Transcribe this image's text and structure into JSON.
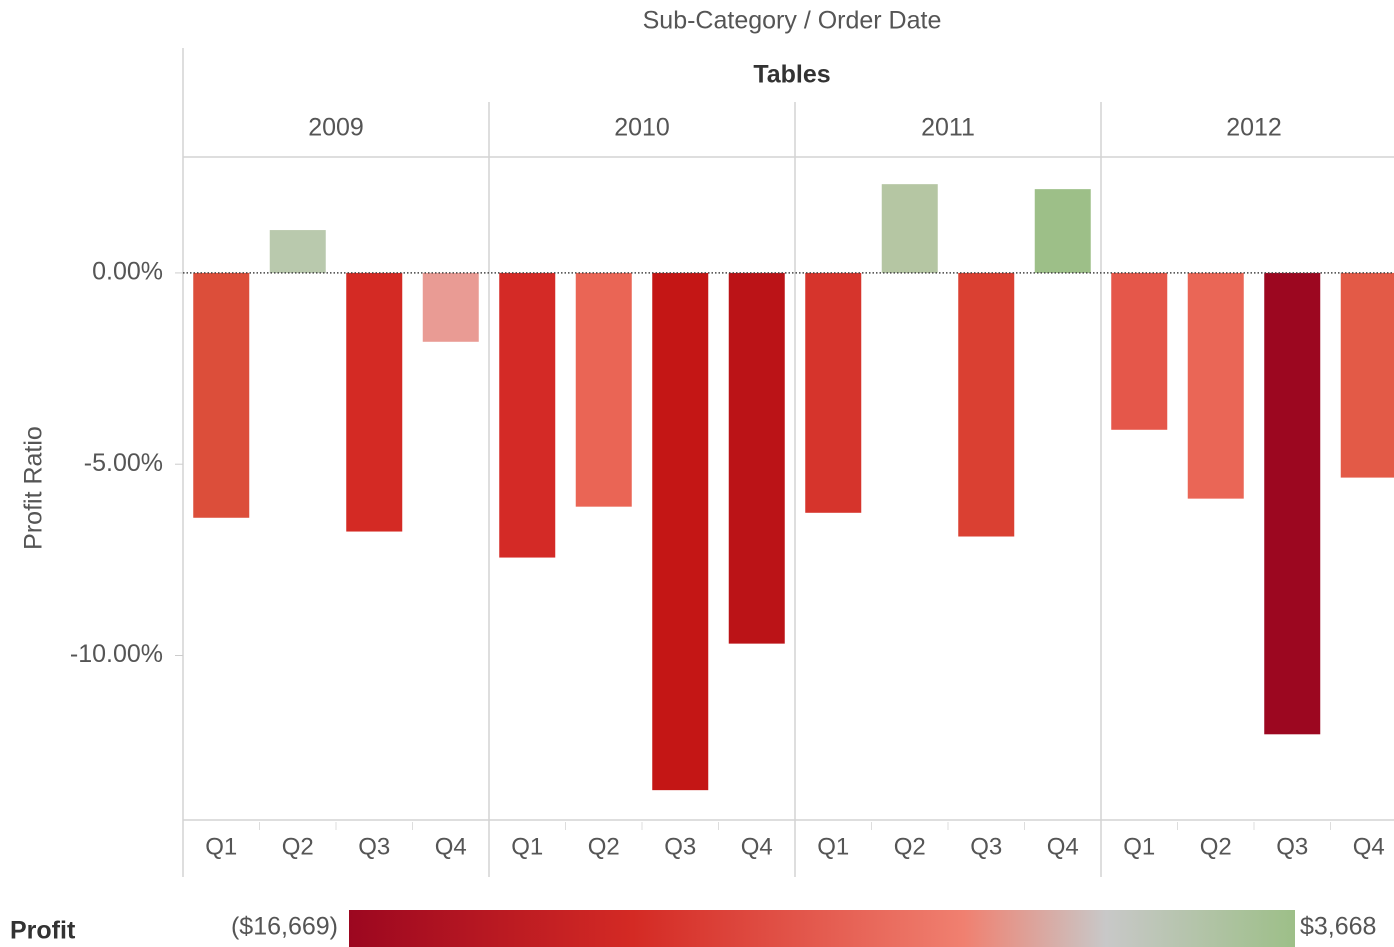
{
  "chart_data": {
    "type": "bar",
    "title": "Sub-Category / Order Date",
    "facet": "Tables",
    "groups": [
      "2009",
      "2010",
      "2011",
      "2012"
    ],
    "categories": [
      "Q1",
      "Q2",
      "Q3",
      "Q4",
      "Q1",
      "Q2",
      "Q3",
      "Q4",
      "Q1",
      "Q2",
      "Q3",
      "Q4",
      "Q1",
      "Q2",
      "Q3",
      "Q4"
    ],
    "values": [
      -6.4,
      1.12,
      -6.76,
      -1.8,
      -7.44,
      -6.11,
      -13.52,
      -9.69,
      -6.27,
      2.32,
      -6.89,
      2.19,
      -4.1,
      -5.9,
      -12.06,
      -5.35
    ],
    "colors": [
      "#dc4e3a",
      "#b9c9ad",
      "#d42a24",
      "#e99b94",
      "#d42a26",
      "#ea6555",
      "#c41615",
      "#bb1317",
      "#d6342c",
      "#b5c6a3",
      "#da4032",
      "#9dbf88",
      "#e5574a",
      "#ea6656",
      "#9c0720",
      "#e35a47"
    ],
    "y_label": "Profit Ratio",
    "ylim": [
      -14.3,
      3.03
    ],
    "yticks": [
      {
        "value": 0,
        "label": "0.00%"
      },
      {
        "value": -5,
        "label": "-5.00%"
      },
      {
        "value": -10,
        "label": "-10.00%"
      }
    ],
    "legend": {
      "title": "Profit",
      "min_label": "($16,669)",
      "max_label": "$3,668",
      "colors": [
        "#9c0720",
        "#d42a24",
        "#f08070",
        "#c8c8c8",
        "#9dbf88"
      ]
    }
  }
}
